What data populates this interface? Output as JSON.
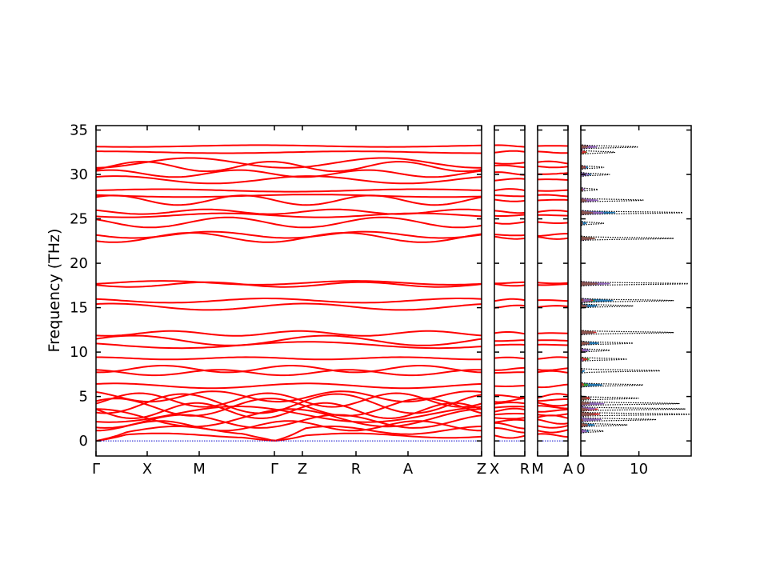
{
  "chart_data": {
    "type": "line",
    "ylabel": "Frequency (THz)",
    "ylim": [
      -1.7,
      35.5
    ],
    "yticks": [
      0,
      5,
      10,
      15,
      20,
      25,
      30,
      35
    ],
    "colors": {
      "band": "#ff0000",
      "zero": "#0000cc",
      "dos_total": "#000000",
      "pdos": [
        "#1f77b4",
        "#ff7f0e",
        "#2ca02c",
        "#d62728",
        "#9467bd",
        "#8c564b"
      ]
    },
    "band_path": [
      {
        "segment": "Γ-X-M-Γ",
        "labels": [
          "Γ",
          "X",
          "M",
          "Γ"
        ]
      },
      {
        "segment": "Γ-Z-R-A-Z",
        "labels": [
          "Z",
          "R",
          "A",
          "Z"
        ]
      },
      {
        "segment": "X-R",
        "labels": [
          "X",
          "R"
        ]
      },
      {
        "segment": "M-A",
        "labels": [
          "M",
          "A"
        ]
      }
    ],
    "band_levels_thz": [
      0.6,
      1.2,
      1.7,
      2.2,
      2.6,
      3.0,
      3.4,
      3.8,
      4.2,
      4.6,
      5.0,
      6.2,
      7.7,
      8.1,
      9.3,
      10.8,
      11.3,
      12.1,
      15.1,
      15.8,
      17.6,
      17.8,
      22.9,
      23.2,
      24.6,
      25.4,
      25.8,
      27.1,
      27.6,
      28.2,
      29.4,
      30.1,
      30.9,
      31.3,
      32.5,
      33.2
    ],
    "dos": {
      "xticks": [
        0,
        10
      ],
      "xlim": [
        0,
        19
      ],
      "peaks_thz": [
        {
          "f": 33.1,
          "v": 10
        },
        {
          "f": 32.5,
          "v": 6
        },
        {
          "f": 30.8,
          "v": 4
        },
        {
          "f": 30.0,
          "v": 5
        },
        {
          "f": 28.3,
          "v": 3
        },
        {
          "f": 27.1,
          "v": 11
        },
        {
          "f": 25.7,
          "v": 18
        },
        {
          "f": 24.5,
          "v": 4
        },
        {
          "f": 22.8,
          "v": 16
        },
        {
          "f": 17.7,
          "v": 19
        },
        {
          "f": 15.8,
          "v": 16
        },
        {
          "f": 15.2,
          "v": 9
        },
        {
          "f": 12.2,
          "v": 16
        },
        {
          "f": 11.0,
          "v": 9
        },
        {
          "f": 10.2,
          "v": 5
        },
        {
          "f": 9.2,
          "v": 8
        },
        {
          "f": 7.9,
          "v": 14
        },
        {
          "f": 6.3,
          "v": 11
        },
        {
          "f": 4.8,
          "v": 10
        },
        {
          "f": 4.2,
          "v": 17
        },
        {
          "f": 3.6,
          "v": 18
        },
        {
          "f": 3.0,
          "v": 19
        },
        {
          "f": 2.4,
          "v": 13
        },
        {
          "f": 1.8,
          "v": 8
        },
        {
          "f": 1.1,
          "v": 4
        }
      ]
    }
  }
}
